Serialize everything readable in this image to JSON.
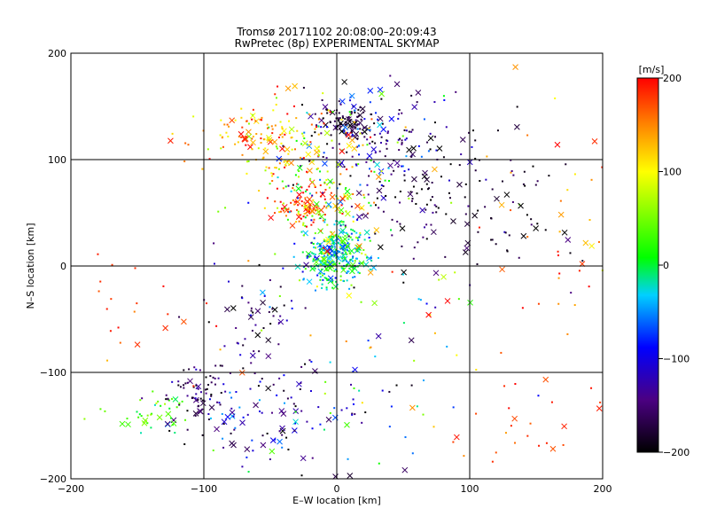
{
  "chart_data": {
    "type": "scatter",
    "title": "Tromsø 20171102 20:08:00–20:09:43",
    "subtitle": "RwPretec (8p) EXPERIMENTAL SKYMAP",
    "xlabel": "E–W location [km]",
    "ylabel": "N–S location [km]",
    "xlim": [
      -200,
      200
    ],
    "ylim": [
      -200,
      200
    ],
    "xticks": [
      "−200",
      "−100",
      "0",
      "100",
      "200"
    ],
    "yticks": [
      "−200",
      "−100",
      "0",
      "100",
      "200"
    ],
    "grid": true,
    "colorbar": {
      "label": "[m/s]",
      "range": [
        -200,
        200
      ],
      "ticks": [
        "200",
        "100",
        "0",
        "−100",
        "−200"
      ],
      "colormap": "rainbow (black → purple → blue → cyan → green → yellow → red)"
    },
    "markers": [
      "dot",
      "x"
    ],
    "clusters": [
      {
        "x": 0,
        "y": 10,
        "sx": 12,
        "sy": 15,
        "n": 300,
        "v": -10,
        "vs": 40
      },
      {
        "x": 10,
        "y": 135,
        "sx": 10,
        "sy": 8,
        "n": 90,
        "v": -175,
        "vs": 15
      },
      {
        "x": 30,
        "y": 120,
        "sx": 30,
        "sy": 25,
        "n": 130,
        "v": -120,
        "vs": 60
      },
      {
        "x": -45,
        "y": 120,
        "sx": 28,
        "sy": 18,
        "n": 160,
        "v": 130,
        "vs": 50
      },
      {
        "x": -25,
        "y": 55,
        "sx": 12,
        "sy": 12,
        "n": 80,
        "v": 180,
        "vs": 30
      },
      {
        "x": -10,
        "y": 70,
        "sx": 25,
        "sy": 35,
        "n": 200,
        "v": 50,
        "vs": 80
      },
      {
        "x": 65,
        "y": 70,
        "sx": 40,
        "sy": 35,
        "n": 120,
        "v": -170,
        "vs": 30
      },
      {
        "x": -105,
        "y": -120,
        "sx": 12,
        "sy": 15,
        "n": 70,
        "v": -160,
        "vs": 30
      },
      {
        "x": -140,
        "y": -140,
        "sx": 15,
        "sy": 8,
        "n": 40,
        "v": 20,
        "vs": 25
      },
      {
        "x": -40,
        "y": -150,
        "sx": 40,
        "sy": 30,
        "n": 120,
        "v": -120,
        "vs": 60
      },
      {
        "x": -60,
        "y": -60,
        "sx": 25,
        "sy": 35,
        "n": 70,
        "v": -150,
        "vs": 40
      },
      {
        "x": 160,
        "y": 60,
        "sx": 30,
        "sy": 60,
        "n": 40,
        "v": 140,
        "vs": 40
      },
      {
        "x": 140,
        "y": -150,
        "sx": 35,
        "sy": 30,
        "n": 30,
        "v": 180,
        "vs": 20
      },
      {
        "x": -150,
        "y": -40,
        "sx": 30,
        "sy": 40,
        "n": 25,
        "v": 180,
        "vs": 20
      },
      {
        "x": 40,
        "y": -60,
        "sx": 40,
        "sy": 50,
        "n": 60,
        "v": 0,
        "vs": 120
      },
      {
        "x": 130,
        "y": 50,
        "sx": 30,
        "sy": 30,
        "n": 50,
        "v": -180,
        "vs": 20
      }
    ]
  }
}
